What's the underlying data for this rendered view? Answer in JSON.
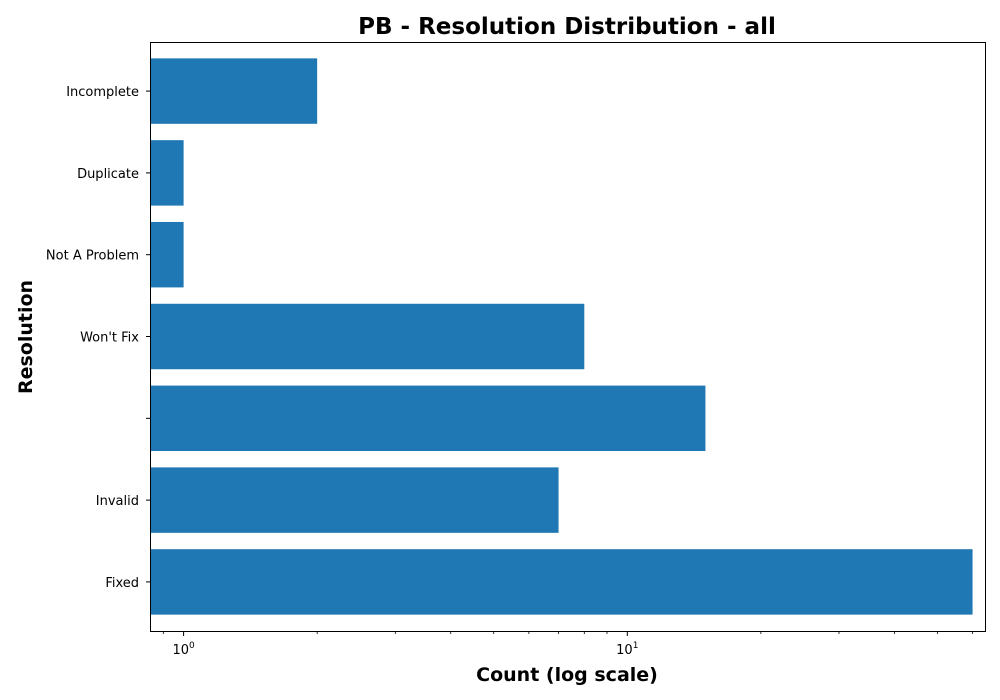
{
  "chart_data": {
    "type": "bar",
    "orientation": "horizontal",
    "title": "PB - Resolution Distribution - all",
    "xlabel": "Count (log scale)",
    "ylabel": "Resolution",
    "x_scale": "log",
    "x_ticks": [
      {
        "value": 1,
        "base": "10",
        "exp": "0"
      },
      {
        "value": 10,
        "base": "10",
        "exp": "1"
      }
    ],
    "categories": [
      "Fixed",
      "Invalid",
      "",
      "Won't Fix",
      "Not A Problem",
      "Duplicate",
      "Incomplete"
    ],
    "values": [
      60,
      7,
      15,
      8,
      1,
      1,
      2
    ],
    "xlim": [
      0.84,
      64
    ],
    "bar_color": "#1f77b4",
    "grid": false,
    "legend": "none"
  }
}
